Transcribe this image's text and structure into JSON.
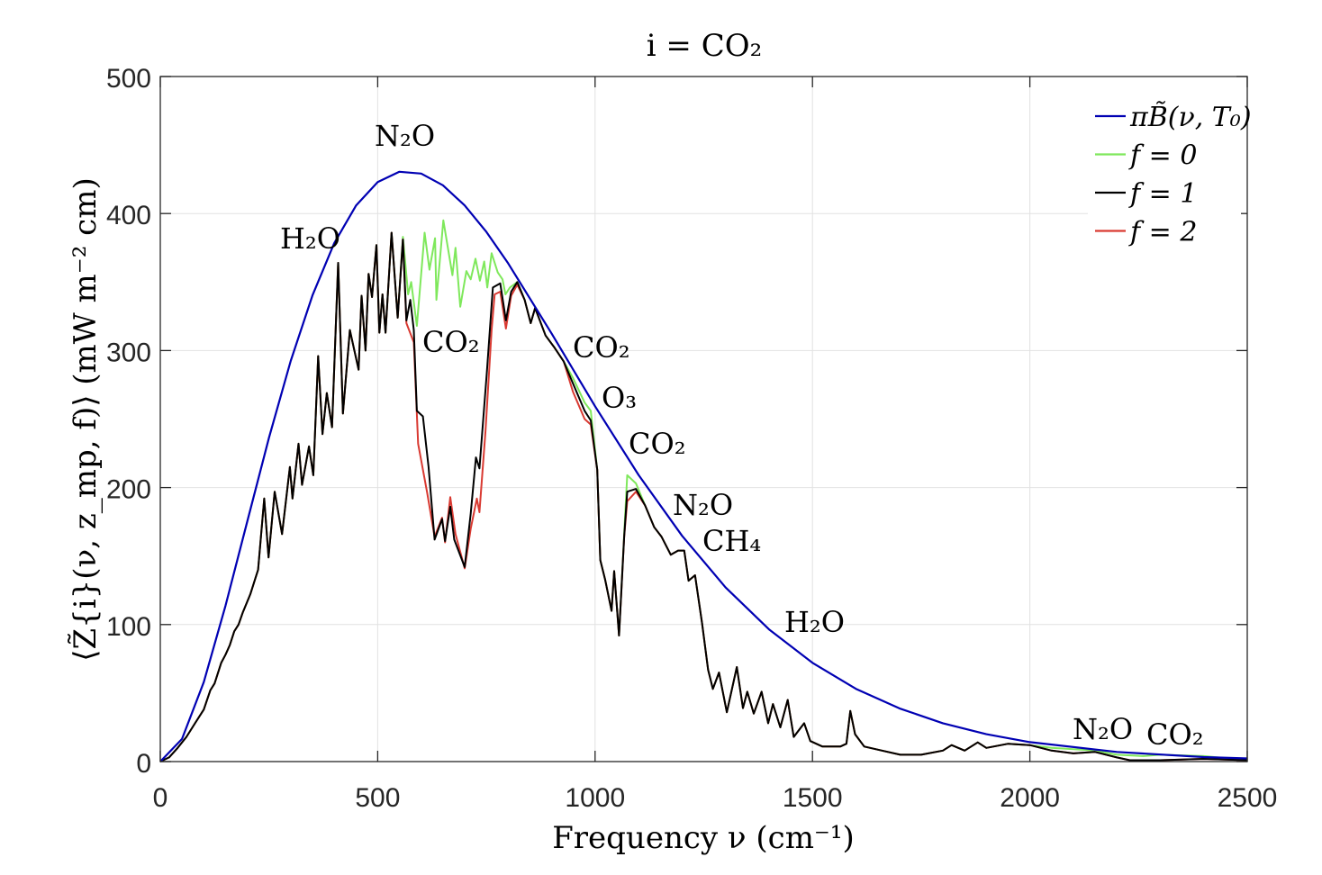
{
  "chart_data": {
    "type": "line",
    "title": "i =  CO₂",
    "xlabel": "Frequency ν (cm⁻¹)",
    "ylabel": "⟨Z̃{i}(ν, z_mp, f)⟩ (mW m⁻² cm)",
    "xlim": [
      0,
      2500
    ],
    "ylim": [
      0,
      500
    ],
    "xticks": [
      0,
      500,
      1000,
      1500,
      2000,
      2500
    ],
    "yticks": [
      0,
      100,
      200,
      300,
      400,
      500
    ],
    "grid": true,
    "legend_placement": "top-right",
    "series": [
      {
        "name": "πB̃(ν, T₀)",
        "color": "#0000b3",
        "x": [
          0,
          50,
          100,
          150,
          200,
          250,
          300,
          350,
          400,
          450,
          500,
          550,
          600,
          650,
          700,
          750,
          800,
          900,
          1000,
          1100,
          1200,
          1300,
          1400,
          1500,
          1600,
          1700,
          1800,
          1900,
          2000,
          2200,
          2400,
          2500
        ],
        "y": [
          0,
          16.5,
          58,
          113.7,
          175.3,
          236.4,
          292.4,
          340.3,
          378.3,
          405.8,
          422.9,
          430.5,
          429.2,
          420.6,
          405.9,
          386.6,
          363.7,
          312.5,
          259.3,
          209.2,
          164.8,
          127.2,
          96.5,
          72.1,
          53.1,
          38.8,
          28,
          20,
          14.2,
          7,
          3.3,
          2.3
        ]
      },
      {
        "name": "f = 0",
        "color": "#7fe85c",
        "x": [
          0,
          20,
          40,
          60,
          80,
          100,
          115,
          125,
          140,
          150,
          160,
          170,
          180,
          190,
          207,
          225,
          239,
          249,
          263,
          280,
          298,
          304,
          318,
          326,
          342,
          352,
          363,
          373,
          383,
          395,
          409,
          420,
          436,
          456,
          463,
          472,
          479,
          487,
          497,
          504,
          511,
          518,
          532,
          546,
          558,
          570,
          577,
          590,
          608,
          619,
          632,
          635,
          651,
          663,
          672,
          679,
          690,
          704,
          714,
          725,
          735,
          745,
          752,
          762,
          776,
          787,
          794,
          804,
          821,
          838,
          852,
          862,
          886,
          907,
          928,
          949,
          976,
          990,
          1005,
          1012,
          1023,
          1038,
          1044,
          1055,
          1067,
          1074,
          1094,
          1115,
          1136,
          1153,
          1174,
          1191,
          1205,
          1215,
          1230,
          1246,
          1260,
          1271,
          1285,
          1303,
          1326,
          1340,
          1350,
          1365,
          1383,
          1398,
          1409,
          1426,
          1443,
          1457,
          1481,
          1495,
          1523,
          1564,
          1578,
          1587,
          1598,
          1619,
          1660,
          1702,
          1750,
          1800,
          1820,
          1850,
          1880,
          1900,
          1950,
          2000,
          2050,
          2100,
          2150,
          2200,
          2260,
          2300,
          2400,
          2500
        ],
        "y": [
          0,
          3,
          10,
          18,
          28,
          38,
          52,
          57,
          72,
          78,
          85,
          95,
          100,
          109,
          122,
          140,
          192,
          149,
          197,
          166,
          215,
          192,
          232,
          202,
          230,
          209,
          296,
          239,
          269,
          244,
          364,
          254,
          315,
          286,
          340,
          300,
          356,
          339,
          377,
          313,
          341,
          313,
          386,
          324,
          383,
          341,
          350,
          318,
          386,
          359,
          382,
          337,
          395,
          372,
          355,
          375,
          332,
          358,
          352,
          367,
          351,
          365,
          346,
          371,
          357,
          352,
          341,
          346,
          350,
          337,
          320,
          331,
          311,
          302,
          292,
          280,
          262,
          256,
          213,
          147,
          133,
          110,
          139,
          92,
          166,
          209,
          203,
          187,
          171,
          164,
          151,
          154,
          154,
          132,
          136,
          101,
          67,
          53,
          65,
          36,
          69,
          39,
          51,
          35,
          51,
          28,
          42,
          25,
          45,
          18,
          28,
          15,
          11,
          11,
          13,
          37,
          20,
          11,
          8,
          5,
          5,
          8,
          12,
          8,
          14,
          10,
          13,
          12,
          10,
          9,
          8,
          5,
          4,
          5,
          4,
          1
        ]
      },
      {
        "name": "f = 1",
        "color": "#000000",
        "x": [
          0,
          20,
          40,
          60,
          80,
          100,
          115,
          125,
          140,
          150,
          160,
          170,
          180,
          190,
          207,
          225,
          239,
          249,
          263,
          280,
          298,
          304,
          318,
          326,
          342,
          352,
          363,
          373,
          383,
          395,
          409,
          420,
          436,
          456,
          463,
          472,
          479,
          487,
          497,
          504,
          511,
          518,
          532,
          546,
          558,
          566,
          575,
          583,
          590,
          604,
          617,
          631,
          648,
          655,
          667,
          676,
          700,
          714,
          726,
          734,
          751,
          765,
          782,
          795,
          807,
          821,
          838,
          852,
          862,
          886,
          907,
          928,
          949,
          976,
          990,
          1005,
          1012,
          1023,
          1038,
          1044,
          1055,
          1067,
          1074,
          1094,
          1115,
          1136,
          1153,
          1174,
          1191,
          1205,
          1215,
          1230,
          1246,
          1260,
          1271,
          1285,
          1303,
          1326,
          1340,
          1350,
          1365,
          1383,
          1398,
          1409,
          1426,
          1443,
          1457,
          1481,
          1495,
          1523,
          1564,
          1578,
          1587,
          1598,
          1619,
          1660,
          1702,
          1750,
          1800,
          1820,
          1850,
          1880,
          1900,
          1950,
          2000,
          2050,
          2100,
          2150,
          2200,
          2230,
          2300,
          2400,
          2500
        ],
        "y": [
          0,
          3,
          10,
          18,
          28,
          38,
          52,
          57,
          72,
          78,
          85,
          95,
          100,
          109,
          122,
          140,
          192,
          149,
          197,
          166,
          215,
          192,
          232,
          202,
          230,
          209,
          296,
          239,
          269,
          244,
          364,
          254,
          315,
          286,
          340,
          300,
          356,
          339,
          377,
          313,
          341,
          313,
          386,
          324,
          381,
          322,
          337,
          315,
          256,
          252,
          215,
          162,
          177,
          161,
          186,
          162,
          142,
          181,
          222,
          214,
          284,
          346,
          349,
          322,
          343,
          350,
          337,
          320,
          331,
          311,
          302,
          292,
          276,
          256,
          249,
          213,
          147,
          133,
          110,
          139,
          92,
          164,
          197,
          199,
          187,
          171,
          164,
          151,
          154,
          154,
          132,
          136,
          101,
          67,
          53,
          65,
          36,
          69,
          39,
          51,
          35,
          51,
          28,
          42,
          25,
          45,
          18,
          28,
          15,
          11,
          11,
          13,
          37,
          20,
          11,
          8,
          5,
          5,
          8,
          12,
          8,
          14,
          10,
          13,
          12,
          8,
          6,
          7,
          3,
          1,
          1,
          2,
          1
        ]
      },
      {
        "name": "f = 2",
        "color": "#d93a32",
        "x": [
          0,
          20,
          40,
          60,
          80,
          100,
          115,
          125,
          140,
          150,
          160,
          170,
          180,
          190,
          207,
          225,
          239,
          249,
          263,
          280,
          298,
          304,
          318,
          326,
          342,
          352,
          363,
          373,
          383,
          395,
          409,
          420,
          436,
          456,
          463,
          472,
          479,
          487,
          497,
          504,
          511,
          518,
          532,
          546,
          558,
          566,
          583,
          593,
          614,
          631,
          648,
          655,
          667,
          679,
          700,
          714,
          728,
          734,
          748,
          762,
          769,
          782,
          795,
          807,
          821,
          838,
          852,
          862,
          886,
          907,
          928,
          949,
          976,
          990,
          1005,
          1012,
          1023,
          1038,
          1044,
          1055,
          1067,
          1074,
          1094,
          1115,
          1136,
          1153,
          1174,
          1191,
          1205,
          1215,
          1230,
          1246,
          1260,
          1271,
          1285,
          1303,
          1326,
          1340,
          1350,
          1365,
          1383,
          1398,
          1409,
          1426,
          1443,
          1457,
          1481,
          1495,
          1523,
          1564,
          1578,
          1587,
          1598,
          1619,
          1660,
          1702,
          1750,
          1800,
          1820,
          1850,
          1880,
          1900,
          1950,
          2000,
          2050,
          2100,
          2150,
          2200,
          2230,
          2300,
          2400,
          2500
        ],
        "y": [
          0,
          3,
          10,
          18,
          28,
          38,
          52,
          57,
          72,
          78,
          85,
          95,
          100,
          109,
          122,
          140,
          192,
          149,
          197,
          166,
          215,
          192,
          232,
          202,
          230,
          209,
          296,
          239,
          269,
          244,
          364,
          254,
          315,
          286,
          340,
          300,
          356,
          339,
          377,
          313,
          341,
          313,
          386,
          324,
          381,
          320,
          306,
          232,
          196,
          164,
          178,
          160,
          193,
          166,
          141,
          170,
          192,
          182,
          241,
          315,
          341,
          343,
          316,
          340,
          348,
          337,
          320,
          331,
          311,
          302,
          292,
          270,
          250,
          246,
          213,
          147,
          133,
          110,
          139,
          92,
          164,
          190,
          197,
          187,
          171,
          164,
          151,
          154,
          154,
          132,
          136,
          101,
          67,
          53,
          65,
          36,
          69,
          39,
          51,
          35,
          51,
          28,
          42,
          25,
          45,
          18,
          28,
          15,
          11,
          11,
          13,
          37,
          20,
          11,
          8,
          5,
          5,
          8,
          12,
          8,
          14,
          10,
          13,
          12,
          8,
          6,
          7,
          3,
          1,
          1,
          2,
          1
        ]
      }
    ],
    "annotations": [
      "N₂O",
      "H₂O",
      "CO₂",
      "CO₂",
      "O₃",
      "CO₂",
      "N₂O",
      "CH₄",
      "H₂O",
      "N₂O",
      "CO₂"
    ]
  }
}
